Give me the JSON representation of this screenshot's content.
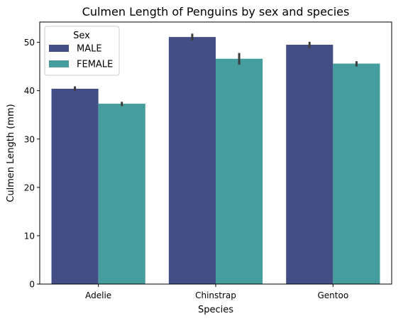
{
  "chart_data": {
    "type": "bar",
    "title": "Culmen Length of Penguins by sex and species",
    "xlabel": "Species",
    "ylabel": "Culmen Length (mm)",
    "categories": [
      "Adelie",
      "Chinstrap",
      "Gentoo"
    ],
    "ylim": [
      0,
      54.2
    ],
    "yticks": [
      0,
      10,
      20,
      30,
      40,
      50
    ],
    "grid": false,
    "legend": {
      "title": "Sex",
      "position": "top-left"
    },
    "series": [
      {
        "name": "MALE",
        "color": "#434e87",
        "values": [
          40.4,
          51.1,
          49.5
        ],
        "error_low": [
          39.9,
          50.4,
          48.8
        ],
        "error_high": [
          40.9,
          51.8,
          50.1
        ]
      },
      {
        "name": "FEMALE",
        "color": "#459e9d",
        "values": [
          37.3,
          46.6,
          45.6
        ],
        "error_low": [
          36.8,
          45.4,
          45.0
        ],
        "error_high": [
          37.7,
          47.8,
          46.1
        ]
      }
    ]
  }
}
